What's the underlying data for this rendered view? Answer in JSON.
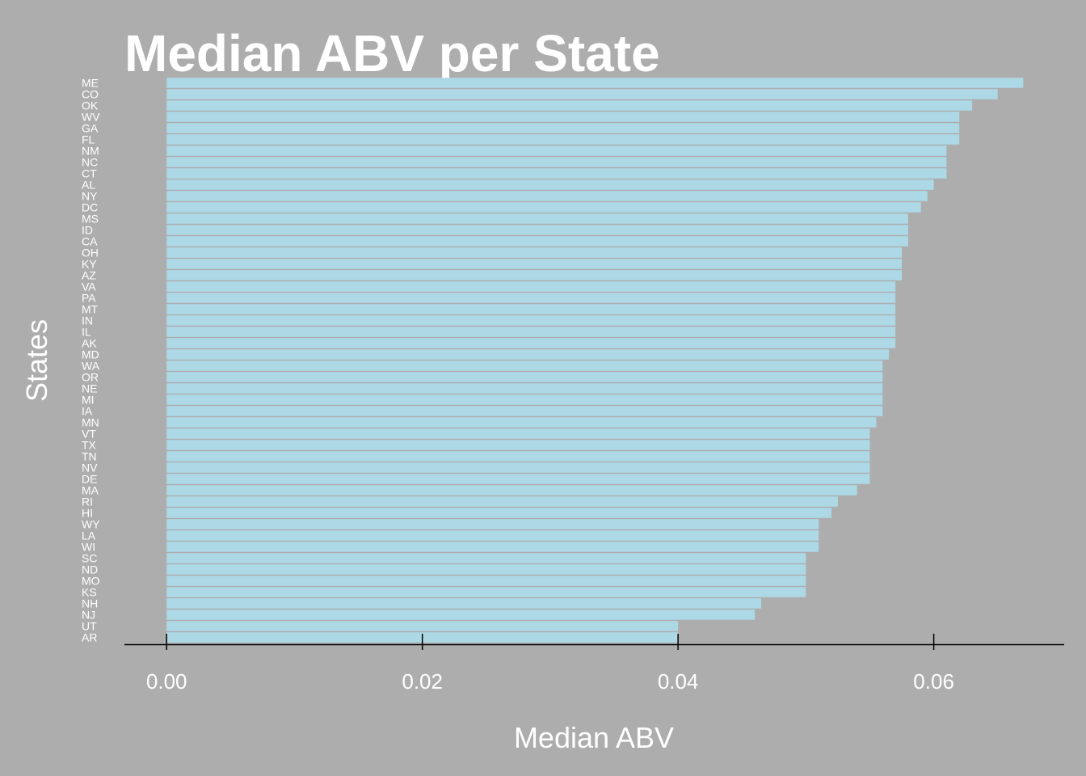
{
  "chart_data": {
    "type": "bar",
    "orientation": "horizontal",
    "title": "Median ABV per State",
    "xlabel": "Median ABV",
    "ylabel": "States",
    "xlim": [
      -0.0033,
      0.0702
    ],
    "xticks": [
      0.0,
      0.02,
      0.04,
      0.06
    ],
    "xtick_labels": [
      "0.00",
      "0.02",
      "0.04",
      "0.06"
    ],
    "grid": false,
    "bar_color": "#add8e6",
    "categories": [
      "ME",
      "CO",
      "OK",
      "WV",
      "GA",
      "FL",
      "NM",
      "NC",
      "CT",
      "AL",
      "NY",
      "DC",
      "MS",
      "ID",
      "CA",
      "OH",
      "KY",
      "AZ",
      "VA",
      "PA",
      "MT",
      "IN",
      "IL",
      "AK",
      "MD",
      "WA",
      "OR",
      "NE",
      "MI",
      "IA",
      "MN",
      "VT",
      "TX",
      "TN",
      "NV",
      "DE",
      "MA",
      "RI",
      "HI",
      "WY",
      "LA",
      "WI",
      "SC",
      "ND",
      "MO",
      "KS",
      "NH",
      "NJ",
      "UT",
      "AR"
    ],
    "values": [
      0.067,
      0.065,
      0.063,
      0.062,
      0.062,
      0.062,
      0.061,
      0.061,
      0.061,
      0.06,
      0.0595,
      0.059,
      0.058,
      0.058,
      0.058,
      0.0575,
      0.0575,
      0.0575,
      0.057,
      0.057,
      0.057,
      0.057,
      0.057,
      0.057,
      0.0565,
      0.056,
      0.056,
      0.056,
      0.056,
      0.056,
      0.0555,
      0.055,
      0.055,
      0.055,
      0.055,
      0.055,
      0.054,
      0.0525,
      0.052,
      0.051,
      0.051,
      0.051,
      0.05,
      0.05,
      0.05,
      0.05,
      0.0465,
      0.046,
      0.04,
      0.04
    ]
  }
}
